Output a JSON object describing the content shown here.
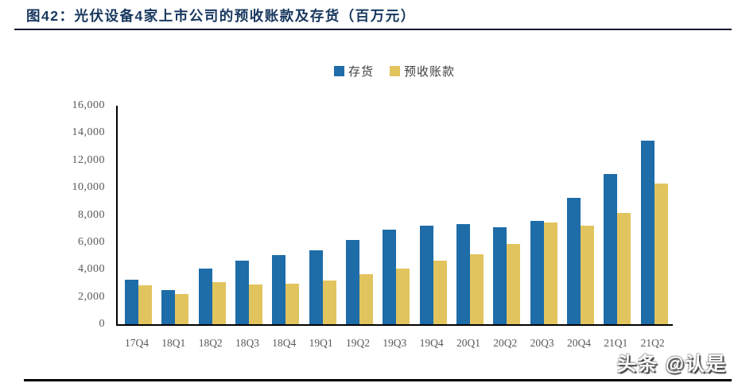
{
  "figure": {
    "title": "图42：光伏设备4家上市公司的预收账款及存货（百万元）",
    "watermark": "头条 @认是"
  },
  "colors": {
    "title_text": "#17375E",
    "header_rule": "#111b2e",
    "axis_line": "#000000",
    "tick_label": "#595959",
    "series_inventory": "#1E6CA8",
    "series_advances": "#E2C45F"
  },
  "chart_data": {
    "type": "bar",
    "title": "图42：光伏设备4家上市公司的预收账款及存货（百万元）",
    "xlabel": "",
    "ylabel": "",
    "ylim": [
      0,
      16000
    ],
    "grid": false,
    "legend_position": "top-center",
    "categories": [
      "17Q4",
      "18Q1",
      "18Q2",
      "18Q3",
      "18Q4",
      "19Q1",
      "19Q2",
      "19Q3",
      "19Q4",
      "20Q1",
      "20Q2",
      "20Q3",
      "20Q4",
      "21Q1",
      "21Q2"
    ],
    "series": [
      {
        "name": "存货",
        "color": "#1E6CA8",
        "values": [
          3260,
          2500,
          4090,
          4650,
          5070,
          5400,
          6160,
          6930,
          7220,
          7350,
          7080,
          7570,
          9270,
          11010,
          13450
        ]
      },
      {
        "name": "预收账款",
        "color": "#E2C45F",
        "values": [
          2870,
          2210,
          3060,
          2910,
          2950,
          3200,
          3680,
          4070,
          4650,
          5130,
          5870,
          7450,
          7190,
          8120,
          10280
        ]
      }
    ],
    "y_ticks": [
      0,
      2000,
      4000,
      6000,
      8000,
      10000,
      12000,
      14000,
      16000
    ],
    "y_tick_labels": [
      "0",
      "2,000",
      "4,000",
      "6,000",
      "8,000",
      "10,000",
      "12,000",
      "14,000",
      "16,000"
    ]
  }
}
